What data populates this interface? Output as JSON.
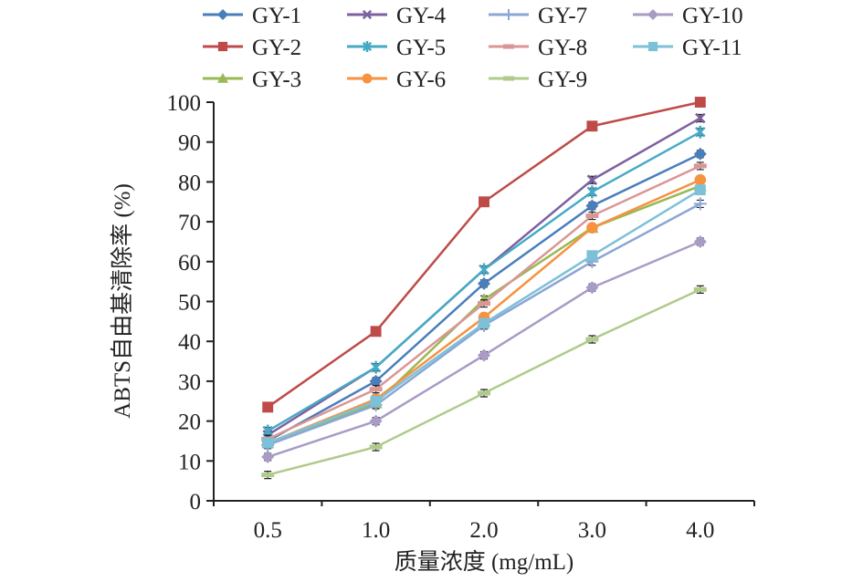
{
  "chart_data": {
    "type": "line",
    "title": "",
    "xlabel": "质量浓度 (mg/mL)",
    "ylabel": "ABTS自由基清除率 (%)",
    "categories": [
      "0.5",
      "1.0",
      "2.0",
      "3.0",
      "4.0"
    ],
    "ylim": [
      0,
      100
    ],
    "yticks": [
      0,
      10,
      20,
      30,
      40,
      50,
      60,
      70,
      80,
      90,
      100
    ],
    "grid": false,
    "legend_position": "top",
    "series": [
      {
        "name": "GY-1",
        "color": "#4A7EBB",
        "marker": "diamond",
        "values": [
          15.0,
          30.0,
          54.5,
          74.0,
          87.0
        ]
      },
      {
        "name": "GY-2",
        "color": "#BE4B48",
        "marker": "square",
        "values": [
          23.5,
          42.5,
          75.0,
          94.0,
          100.0
        ]
      },
      {
        "name": "GY-3",
        "color": "#98B954",
        "marker": "triangle",
        "values": [
          14.5,
          24.5,
          50.5,
          68.5,
          79.0
        ]
      },
      {
        "name": "GY-4",
        "color": "#7D60A0",
        "marker": "x",
        "values": [
          16.5,
          33.5,
          58.0,
          80.5,
          96.0
        ]
      },
      {
        "name": "GY-5",
        "color": "#46AAC5",
        "marker": "star",
        "values": [
          17.5,
          33.5,
          58.0,
          77.5,
          92.5
        ]
      },
      {
        "name": "GY-6",
        "color": "#F69240",
        "marker": "circle",
        "values": [
          14.5,
          25.5,
          46.0,
          68.5,
          80.5
        ]
      },
      {
        "name": "GY-7",
        "color": "#8BA6D5",
        "marker": "plus",
        "values": [
          14.0,
          24.0,
          44.0,
          60.0,
          74.5
        ]
      },
      {
        "name": "GY-8",
        "color": "#DA9695",
        "marker": "dash",
        "values": [
          15.5,
          28.0,
          49.5,
          71.5,
          84.0
        ]
      },
      {
        "name": "GY-9",
        "color": "#AFCB8A",
        "marker": "dash",
        "values": [
          6.5,
          13.5,
          27.0,
          40.5,
          53.0
        ]
      },
      {
        "name": "GY-10",
        "color": "#A99BC6",
        "marker": "diamond",
        "values": [
          11.0,
          20.0,
          36.5,
          53.5,
          65.0
        ]
      },
      {
        "name": "GY-11",
        "color": "#7DC1D8",
        "marker": "square",
        "values": [
          14.5,
          25.0,
          44.5,
          61.5,
          78.0
        ]
      }
    ]
  }
}
